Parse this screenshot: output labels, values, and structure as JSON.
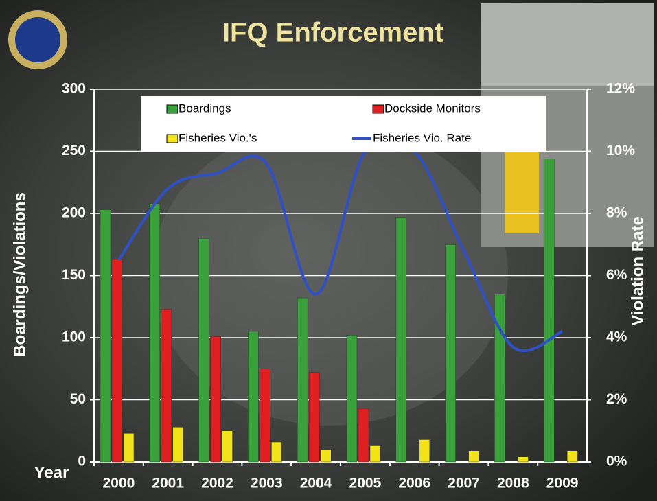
{
  "chart_data": {
    "type": "bar",
    "title": "IFQ Enforcement",
    "x_label": "Year",
    "y_label": "Boardings/Violations",
    "y2_label": "Violation Rate",
    "categories": [
      "2000",
      "2001",
      "2002",
      "2003",
      "2004",
      "2005",
      "2006",
      "2007",
      "2008",
      "2009"
    ],
    "series": [
      {
        "name": "Boardings",
        "color": "#3aa03a",
        "values": [
          203,
          208,
          180,
          105,
          132,
          102,
          197,
          175,
          135,
          244
        ]
      },
      {
        "name": "Dockside Monitors",
        "color": "#e02020",
        "values": [
          163,
          123,
          101,
          75,
          72,
          43,
          null,
          null,
          null,
          null
        ]
      },
      {
        "name": "Fisheries Vio.'s",
        "color": "#f2e21a",
        "values": [
          23,
          28,
          25,
          16,
          10,
          13,
          18,
          9,
          4,
          9
        ]
      },
      {
        "name": "Fisheries Vio. Rate",
        "color": "#3050c8",
        "type": "line",
        "axis": "y2",
        "values": [
          6.5,
          8.8,
          9.3,
          9.6,
          5.4,
          10.0,
          10.0,
          6.8,
          3.7,
          4.2
        ]
      }
    ],
    "ylim": [
      0,
      300
    ],
    "yticks": [
      0,
      50,
      100,
      150,
      200,
      250,
      300
    ],
    "y2lim": [
      0,
      12
    ],
    "y2ticks": [
      {
        "value": 0,
        "label": "0%"
      },
      {
        "value": 2,
        "label": "2%"
      },
      {
        "value": 4,
        "label": "4%"
      },
      {
        "value": 6,
        "label": "6%"
      },
      {
        "value": 8,
        "label": "8%"
      },
      {
        "value": 10,
        "label": "10%"
      },
      {
        "value": 12,
        "label": "12%"
      }
    ],
    "grid": true
  }
}
